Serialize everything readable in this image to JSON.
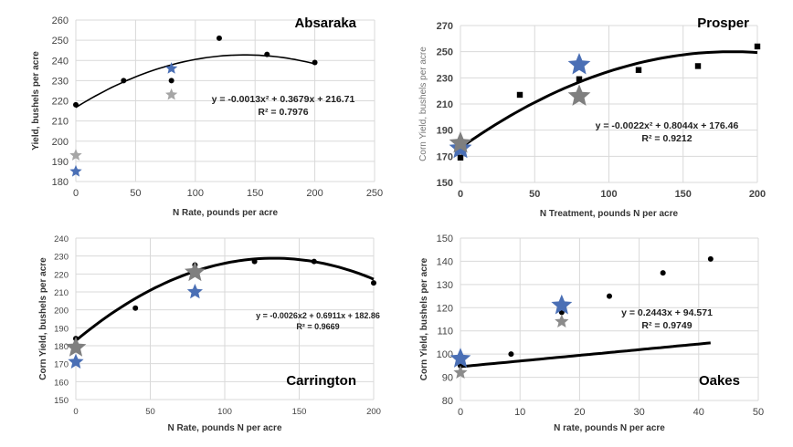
{
  "chart_data": [
    {
      "type": "scatter",
      "title": "Absaraka",
      "xlabel": "N Rate, pounds per acre",
      "ylabel": "Yield, bushels per acre",
      "xlim": [
        0,
        250
      ],
      "ylim": [
        180,
        260
      ],
      "xticks": [
        0,
        50,
        100,
        150,
        200,
        250
      ],
      "yticks": [
        180,
        190,
        200,
        210,
        220,
        230,
        240,
        250,
        260
      ],
      "grid": true,
      "series": [
        {
          "marker": "circle",
          "color": "#000000",
          "x": [
            0,
            40,
            80,
            120,
            160,
            200
          ],
          "y": [
            218,
            230,
            230,
            251,
            243,
            239
          ]
        },
        {
          "marker": "star",
          "color": "#4a6fb5",
          "x": [
            0,
            80
          ],
          "y": [
            185,
            236
          ]
        },
        {
          "marker": "star",
          "color": "#a6a6a6",
          "x": [
            0,
            80
          ],
          "y": [
            193,
            223
          ]
        }
      ],
      "trendline": {
        "type": "polynomial",
        "coefficients": [
          -0.0013,
          0.3679,
          216.71
        ],
        "xrange": [
          0,
          200
        ],
        "equation": "y = -0.0013x² + 0.3679x + 216.71",
        "r2": "R² = 0.7976"
      }
    },
    {
      "type": "scatter",
      "title": "Prosper",
      "xlabel": "N Treatment, pounds N per acre",
      "ylabel": "Corn Yield, bushels per acre",
      "xlim": [
        0,
        200
      ],
      "ylim": [
        150,
        270
      ],
      "xticks": [
        0,
        50,
        100,
        150,
        200
      ],
      "yticks": [
        150,
        170,
        190,
        210,
        230,
        250,
        270
      ],
      "grid": true,
      "series": [
        {
          "marker": "square",
          "color": "#000000",
          "x": [
            0,
            40,
            80,
            120,
            160,
            200
          ],
          "y": [
            169,
            217,
            229,
            236,
            239,
            254
          ]
        },
        {
          "marker": "star",
          "color": "#4a6fb5",
          "x": [
            0,
            80
          ],
          "y": [
            176,
            240
          ]
        },
        {
          "marker": "star",
          "color": "#7f7f7f",
          "x": [
            0,
            80
          ],
          "y": [
            180,
            216
          ]
        }
      ],
      "trendline": {
        "type": "polynomial",
        "coefficients": [
          -0.0022,
          0.8044,
          176.46
        ],
        "xrange": [
          0,
          200
        ],
        "equation": "y = -0.0022x² + 0.8044x + 176.46",
        "r2": "R² = 0.9212"
      }
    },
    {
      "type": "scatter",
      "title": "Carrington",
      "xlabel": "N Rate, pounds N per acre",
      "ylabel": "Corn Yield, bushels per acre",
      "xlim": [
        0,
        200
      ],
      "ylim": [
        150,
        240
      ],
      "xticks": [
        0,
        50,
        100,
        150,
        200
      ],
      "yticks": [
        150,
        160,
        170,
        180,
        190,
        200,
        210,
        220,
        230,
        240
      ],
      "grid": true,
      "series": [
        {
          "marker": "circle",
          "color": "#000000",
          "x": [
            0,
            40,
            80,
            120,
            160,
            200
          ],
          "y": [
            184,
            201,
            225,
            227,
            227,
            215
          ]
        },
        {
          "marker": "star",
          "color": "#4a6fb5",
          "x": [
            0,
            80
          ],
          "y": [
            171,
            210
          ]
        },
        {
          "marker": "star",
          "color": "#7f7f7f",
          "x": [
            0,
            80
          ],
          "y": [
            179,
            221
          ]
        }
      ],
      "trendline": {
        "type": "polynomial",
        "coefficients": [
          -0.0026,
          0.6911,
          182.86
        ],
        "xrange": [
          0,
          200
        ],
        "equation": "y = -0.0026x2 + 0.6911x + 182.86",
        "r2": "R² = 0.9669"
      }
    },
    {
      "type": "scatter",
      "title": "Oakes",
      "xlabel": "N rate, pounds N per acre",
      "ylabel": "Corn Yield, bushels per acre",
      "xlim": [
        0,
        50
      ],
      "ylim": [
        80,
        150
      ],
      "xticks": [
        0,
        10,
        20,
        30,
        40,
        50
      ],
      "yticks": [
        80,
        90,
        100,
        110,
        120,
        130,
        140,
        150
      ],
      "grid": true,
      "series": [
        {
          "marker": "circle",
          "color": "#000000",
          "x": [
            0,
            8.5,
            17,
            25,
            34,
            42
          ],
          "y": [
            95,
            100,
            118,
            125,
            135,
            141
          ]
        },
        {
          "marker": "star",
          "color": "#4a6fb5",
          "x": [
            0,
            17
          ],
          "y": [
            98,
            121
          ]
        },
        {
          "marker": "star",
          "color": "#8c8c8c",
          "x": [
            0,
            17
          ],
          "y": [
            92,
            114
          ]
        }
      ],
      "trendline": {
        "type": "linear",
        "coefficients": [
          0,
          0.2443,
          94.571
        ],
        "xrange": [
          0,
          42
        ],
        "equation": "y = 0.2443x + 94.571",
        "r2": "R² = 0.9749"
      }
    }
  ]
}
